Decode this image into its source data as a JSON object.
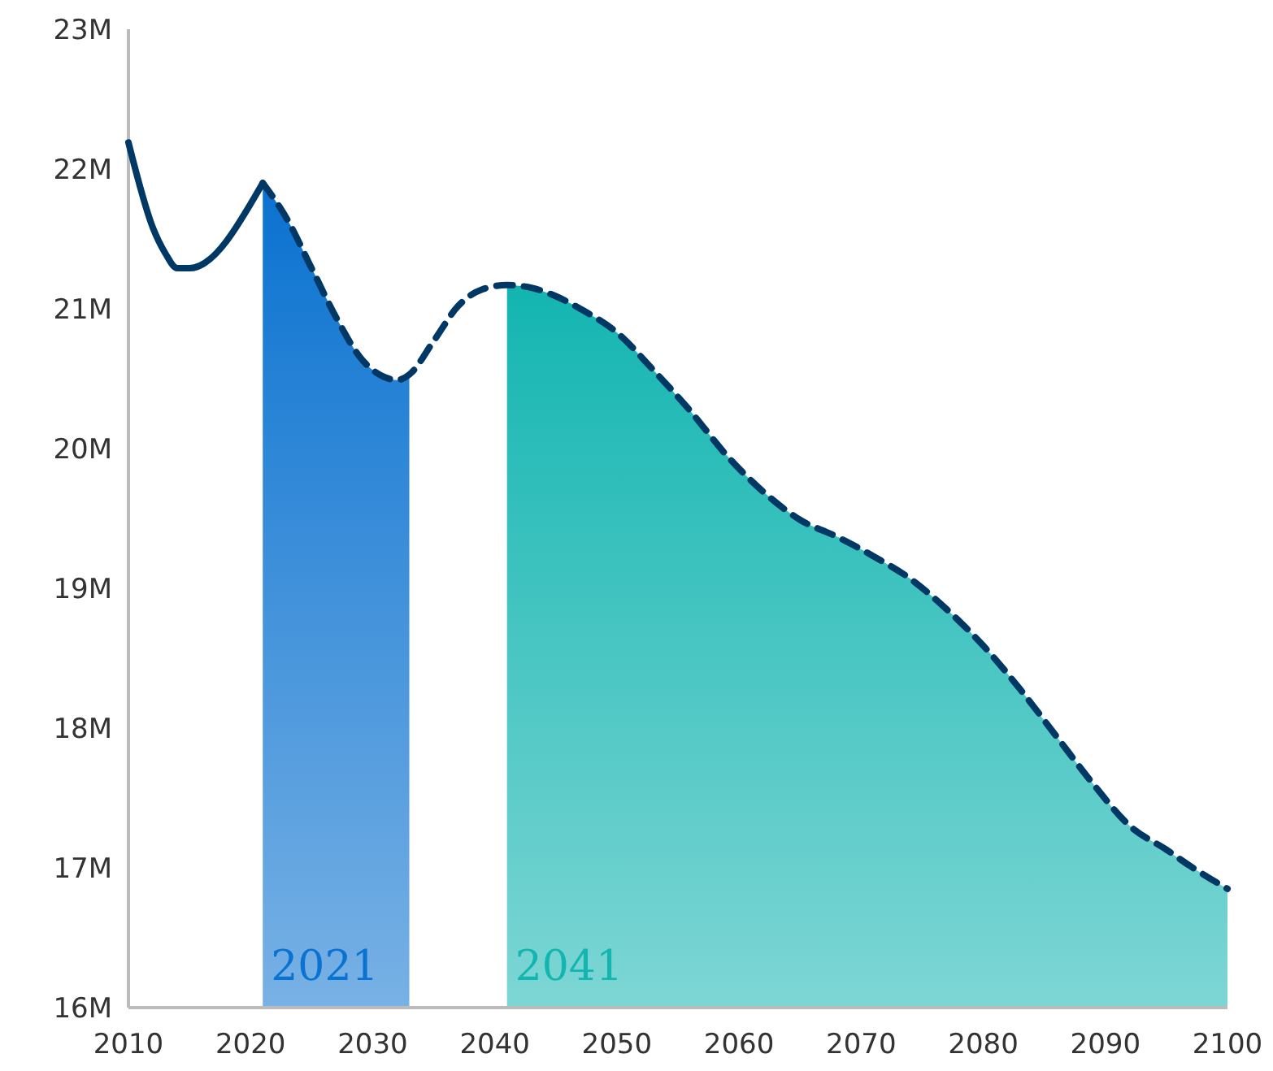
{
  "chart_data": {
    "type": "line",
    "xlim": [
      2010,
      2100
    ],
    "ylim": [
      16,
      23
    ],
    "xticks": [
      2010,
      2020,
      2030,
      2040,
      2050,
      2060,
      2070,
      2080,
      2090,
      2100
    ],
    "yticks": [
      {
        "value": 16,
        "label": "16M"
      },
      {
        "value": 17,
        "label": "17M"
      },
      {
        "value": 18,
        "label": "18M"
      },
      {
        "value": 19,
        "label": "19M"
      },
      {
        "value": 20,
        "label": "20M"
      },
      {
        "value": 21,
        "label": "21M"
      },
      {
        "value": 22,
        "label": "22M"
      },
      {
        "value": 23,
        "label": "23M"
      }
    ],
    "grid": false,
    "series": [
      {
        "type": "area",
        "color": "#0a72d0",
        "x": [
          2021,
          2023,
          2025,
          2027,
          2029,
          2031,
          2032,
          2033
        ],
        "values": [
          21.9,
          21.64,
          21.29,
          20.94,
          20.65,
          20.51,
          20.49,
          20.53
        ]
      },
      {
        "type": "area",
        "color": "#13b5b1",
        "x": [
          2041,
          2043,
          2045,
          2047,
          2050,
          2053,
          2056,
          2059,
          2062,
          2065,
          2068,
          2071,
          2074,
          2077,
          2080,
          2083,
          2086,
          2089,
          2092,
          2095,
          2097,
          2100
        ],
        "values": [
          21.17,
          21.15,
          21.09,
          21.0,
          20.83,
          20.56,
          20.27,
          19.95,
          19.69,
          19.49,
          19.37,
          19.23,
          19.07,
          18.85,
          18.59,
          18.28,
          17.94,
          17.6,
          17.3,
          17.13,
          17.01,
          16.85
        ]
      },
      {
        "color": "#003865",
        "line_style": "solid",
        "x": [
          2010,
          2012,
          2013,
          2014,
          2015,
          2021
        ],
        "values": [
          22.19,
          21.58,
          21.4,
          21.29,
          21.29,
          21.9
        ]
      },
      {
        "color": "#003865",
        "line_style": "dashed",
        "x": [
          2021,
          2023,
          2025,
          2027,
          2029,
          2031,
          2032,
          2033,
          2035,
          2037,
          2039,
          2041,
          2043,
          2045,
          2047,
          2050,
          2053,
          2056,
          2059,
          2062,
          2065,
          2068,
          2071,
          2074,
          2077,
          2080,
          2083,
          2086,
          2089,
          2092,
          2095,
          2097,
          2100
        ],
        "values": [
          21.9,
          21.64,
          21.29,
          20.94,
          20.65,
          20.51,
          20.49,
          20.53,
          20.77,
          21.02,
          21.14,
          21.17,
          21.15,
          21.09,
          21.0,
          20.83,
          20.56,
          20.27,
          19.95,
          19.69,
          19.49,
          19.37,
          19.23,
          19.07,
          18.85,
          18.59,
          18.28,
          17.94,
          17.6,
          17.3,
          17.13,
          17.01,
          16.85
        ]
      }
    ],
    "annotations": [
      {
        "text": "2021",
        "x": 2021,
        "y": 16.2
      },
      {
        "text": "2041",
        "x": 2041,
        "y": 16.2
      }
    ]
  }
}
